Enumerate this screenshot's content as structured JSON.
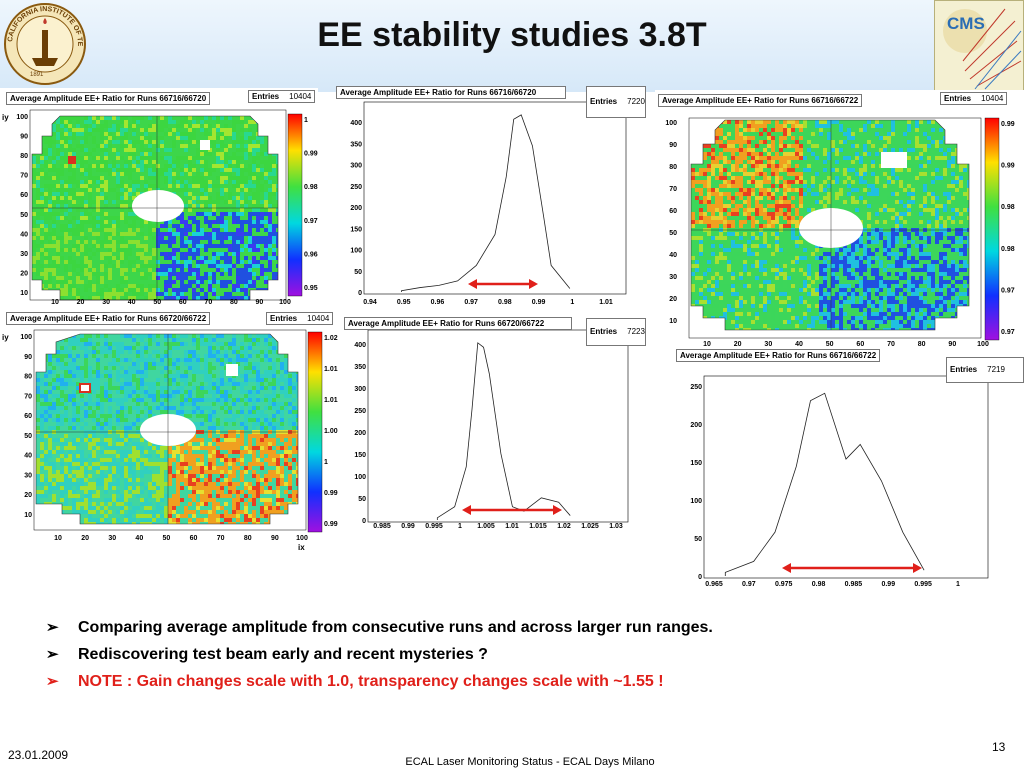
{
  "slide": {
    "title": "EE stability studies 3.8T",
    "footer_date": "23.01.2009",
    "footer_center": "ECAL Laser Monitoring Status - ECAL Days Milano",
    "page_number": "13"
  },
  "logos": {
    "caltech_text": "CALIFORNIA INSTITUTE OF TECHNOLOGY",
    "caltech_year": "1891",
    "cms_text": "CMS"
  },
  "panels": {
    "map1": {
      "label": "Average Amplitude EE+ Ratio for Runs 66716/66720",
      "entries_label": "Entries",
      "entries": "10404",
      "ylabel": "iy",
      "yticks": [
        "100",
        "90",
        "80",
        "70",
        "60",
        "50",
        "40",
        "30",
        "20",
        "10"
      ],
      "xticks": [
        "10",
        "20",
        "30",
        "40",
        "50",
        "60",
        "70",
        "80",
        "90",
        "100"
      ],
      "zticks": [
        "1",
        "0.99",
        "0.98",
        "0.97",
        "0.96",
        "0.95"
      ]
    },
    "map2": {
      "label": "Average Amplitude EE+ Ratio for Runs 66720/66722",
      "entries_label": "Entries",
      "entries": "10404",
      "ylabel": "iy",
      "xlabel": "ix",
      "yticks": [
        "100",
        "90",
        "80",
        "70",
        "60",
        "50",
        "40",
        "30",
        "20",
        "10"
      ],
      "xticks": [
        "10",
        "20",
        "30",
        "40",
        "50",
        "60",
        "70",
        "80",
        "90",
        "100"
      ],
      "zticks": [
        "1.02",
        "1.01",
        "1.01",
        "1.00",
        "1",
        "0.99",
        "0.99"
      ]
    },
    "map3": {
      "label": "Average Amplitude EE+ Ratio for Runs 66716/66722",
      "entries_label": "Entries",
      "entries": "10404",
      "yticks": [
        "100",
        "90",
        "80",
        "70",
        "60",
        "50",
        "40",
        "30",
        "20",
        "10"
      ],
      "xticks": [
        "10",
        "20",
        "30",
        "40",
        "50",
        "60",
        "70",
        "80",
        "90",
        "100"
      ],
      "zticks": [
        "0.99",
        "0.99",
        "0.98",
        "0.98",
        "0.97",
        "0.97"
      ]
    },
    "hist1": {
      "label": "Average Amplitude EE+ Ratio for Runs 66716/66720",
      "entries_label": "Entries",
      "entries": "7220",
      "yticks": [
        "400",
        "350",
        "300",
        "250",
        "200",
        "150",
        "100",
        "50",
        "0"
      ],
      "xticks": [
        "0.94",
        "0.95",
        "0.96",
        "0.97",
        "0.98",
        "0.99",
        "1",
        "1.01"
      ]
    },
    "hist2": {
      "label": "Average Amplitude EE+ Ratio for Runs 66720/66722",
      "entries_label": "Entries",
      "entries": "7223",
      "yticks": [
        "400",
        "350",
        "300",
        "250",
        "200",
        "150",
        "100",
        "50",
        "0"
      ],
      "xticks": [
        "0.985",
        "0.99",
        "0.995",
        "1",
        "1.005",
        "1.01",
        "1.015",
        "1.02",
        "1.025",
        "1.03"
      ]
    },
    "hist3": {
      "label": "Average Amplitude EE+ Ratio for Runs 66716/66722",
      "entries_label": "Entries",
      "entries": "7219",
      "yticks": [
        "250",
        "200",
        "150",
        "100",
        "50",
        "0"
      ],
      "xticks": [
        "0.965",
        "0.97",
        "0.975",
        "0.98",
        "0.985",
        "0.99",
        "0.995",
        "1"
      ]
    }
  },
  "chart_data": [
    {
      "type": "heatmap",
      "title": "Average Amplitude EE+ Ratio for Runs 66716/66720",
      "ylabel": "iy",
      "x_range": [
        0,
        100
      ],
      "y_range": [
        0,
        100
      ],
      "z_range": [
        0.95,
        1.0
      ]
    },
    {
      "type": "bar",
      "title": "Average Amplitude EE+ Ratio for Runs 66716/66720",
      "x": [
        0.95,
        0.955,
        0.96,
        0.965,
        0.97,
        0.975,
        0.978,
        0.98,
        0.982,
        0.985,
        0.988,
        0.99,
        0.995
      ],
      "values": [
        3,
        10,
        15,
        25,
        60,
        130,
        260,
        390,
        400,
        330,
        170,
        60,
        8
      ],
      "xlim": [
        0.94,
        1.01
      ],
      "ylim": [
        0,
        420
      ]
    },
    {
      "type": "heatmap",
      "title": "Average Amplitude EE+ Ratio for Runs 66720/66722",
      "xlabel": "ix",
      "ylabel": "iy",
      "x_range": [
        0,
        100
      ],
      "y_range": [
        0,
        100
      ],
      "z_range": [
        0.99,
        1.02
      ]
    },
    {
      "type": "bar",
      "title": "Average Amplitude EE+ Ratio for Runs 66720/66722",
      "x": [
        0.997,
        1.0,
        1.002,
        1.003,
        1.004,
        1.005,
        1.006,
        1.008,
        1.01,
        1.012,
        1.015,
        1.018,
        1.02
      ],
      "values": [
        5,
        30,
        120,
        250,
        400,
        390,
        330,
        150,
        30,
        20,
        50,
        40,
        10
      ],
      "xlim": [
        0.985,
        1.03
      ],
      "ylim": [
        0,
        420
      ]
    },
    {
      "type": "heatmap",
      "title": "Average Amplitude EE+ Ratio for Runs 66716/66722",
      "x_range": [
        0,
        100
      ],
      "y_range": [
        0,
        100
      ],
      "z_range": [
        0.97,
        0.99
      ]
    },
    {
      "type": "bar",
      "title": "Average Amplitude EE+ Ratio for Runs 66716/66722",
      "x": [
        0.968,
        0.972,
        0.975,
        0.978,
        0.98,
        0.982,
        0.985,
        0.987,
        0.99,
        0.993,
        0.996
      ],
      "values": [
        5,
        20,
        60,
        150,
        240,
        250,
        160,
        180,
        130,
        60,
        8
      ],
      "xlim": [
        0.965,
        1.005
      ],
      "ylim": [
        0,
        260
      ]
    }
  ],
  "bullets": [
    {
      "text": "Comparing average amplitude from consecutive runs and across larger run ranges.",
      "color": "#000000"
    },
    {
      "text": "Rediscovering test beam early and recent mysteries ?",
      "color": "#000000"
    },
    {
      "text": "NOTE : Gain changes scale with 1.0, transparency changes scale with ~1.55 !",
      "color": "#e0201a"
    }
  ],
  "bullet_mark": "➢",
  "colors": {
    "arrow": "#e0201a",
    "bar": "#7b9fc7"
  }
}
